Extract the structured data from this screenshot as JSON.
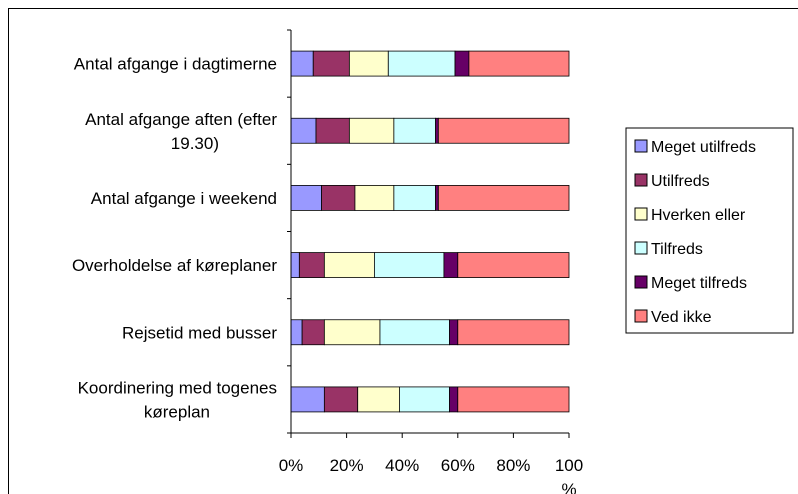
{
  "chart_data": {
    "type": "bar",
    "orientation": "horizontal",
    "stacked": "percent",
    "categories": [
      "Antal afgange i dagtimerne",
      "Antal afgange aften (efter 19.30)",
      "Antal afgange i weekend",
      "Overholdelse af køreplaner",
      "Rejsetid med busser",
      "Koordinering med togenes køreplan"
    ],
    "series": [
      {
        "name": "Meget utilfreds",
        "color": "#9999FF",
        "values": [
          8,
          9,
          11,
          3,
          4,
          12
        ]
      },
      {
        "name": "Utilfreds",
        "color": "#993366",
        "values": [
          13,
          12,
          12,
          9,
          8,
          12
        ]
      },
      {
        "name": "Hverken eller",
        "color": "#FFFFCC",
        "values": [
          14,
          16,
          14,
          18,
          20,
          15
        ]
      },
      {
        "name": "Tilfreds",
        "color": "#CCFFFF",
        "values": [
          24,
          15,
          15,
          25,
          25,
          18
        ]
      },
      {
        "name": "Meget tilfreds",
        "color": "#660066",
        "values": [
          5,
          1,
          1,
          5,
          3,
          3
        ]
      },
      {
        "name": "Ved ikke",
        "color": "#FF8080",
        "values": [
          36,
          47,
          47,
          40,
          40,
          40
        ]
      }
    ],
    "xticks": [
      "0%",
      "20%",
      "40%",
      "60%",
      "80%",
      "100",
      "%"
    ],
    "xlim": [
      0,
      100
    ],
    "legend": "right",
    "grid": false
  }
}
